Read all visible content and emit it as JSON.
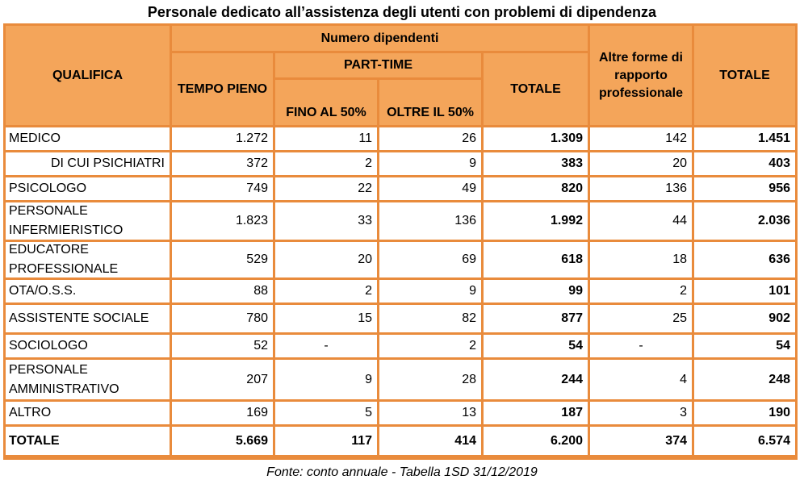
{
  "title": "Personale dedicato all’assistenza degli utenti con problemi di dipendenza",
  "header": {
    "qualifica": "QUALIFICA",
    "numero_dipendenti": "Numero dipendenti",
    "tempo_pieno": "TEMPO PIENO",
    "part_time": "PART-TIME",
    "fino_50": "FINO AL 50%",
    "oltre_50": "OLTRE IL 50%",
    "totale_dip": "TOTALE",
    "altre_forme": "Altre forme di rapporto professionale",
    "totale": "TOTALE"
  },
  "rows": [
    {
      "label": "MEDICO",
      "tempo_pieno": "1.272",
      "fino_50": "11",
      "oltre_50": "26",
      "totale_dip": "1.309",
      "altre": "142",
      "totale": "1.451"
    },
    {
      "label": "DI CUI PSICHIATRI",
      "tempo_pieno": "372",
      "fino_50": "2",
      "oltre_50": "9",
      "totale_dip": "383",
      "altre": "20",
      "totale": "403"
    },
    {
      "label": "PSICOLOGO",
      "tempo_pieno": "749",
      "fino_50": "22",
      "oltre_50": "49",
      "totale_dip": "820",
      "altre": "136",
      "totale": "956"
    },
    {
      "label": "PERSONALE INFERMIERISTICO",
      "tempo_pieno": "1.823",
      "fino_50": "33",
      "oltre_50": "136",
      "totale_dip": "1.992",
      "altre": "44",
      "totale": "2.036"
    },
    {
      "label": "EDUCATORE PROFESSIONALE",
      "tempo_pieno": "529",
      "fino_50": "20",
      "oltre_50": "69",
      "totale_dip": "618",
      "altre": "18",
      "totale": "636"
    },
    {
      "label": "OTA/O.S.S.",
      "tempo_pieno": "88",
      "fino_50": "2",
      "oltre_50": "9",
      "totale_dip": "99",
      "altre": "2",
      "totale": "101"
    },
    {
      "label": "ASSISTENTE SOCIALE",
      "tempo_pieno": "780",
      "fino_50": "15",
      "oltre_50": "82",
      "totale_dip": "877",
      "altre": "25",
      "totale": "902"
    },
    {
      "label": "SOCIOLOGO",
      "tempo_pieno": "52",
      "fino_50": "-",
      "oltre_50": "2",
      "totale_dip": "54",
      "altre": "-",
      "totale": "54"
    },
    {
      "label": "PERSONALE AMMINISTRATIVO",
      "tempo_pieno": "207",
      "fino_50": "9",
      "oltre_50": "28",
      "totale_dip": "244",
      "altre": "4",
      "totale": "248"
    },
    {
      "label": "ALTRO",
      "tempo_pieno": "169",
      "fino_50": "5",
      "oltre_50": "13",
      "totale_dip": "187",
      "altre": "3",
      "totale": "190"
    }
  ],
  "total_row": {
    "label": "TOTALE",
    "tempo_pieno": "5.669",
    "fino_50": "117",
    "oltre_50": "414",
    "totale_dip": "6.200",
    "altre": "374",
    "totale": "6.574"
  },
  "source": "Fonte: conto annuale - Tabella 1SD 31/12/2019"
}
